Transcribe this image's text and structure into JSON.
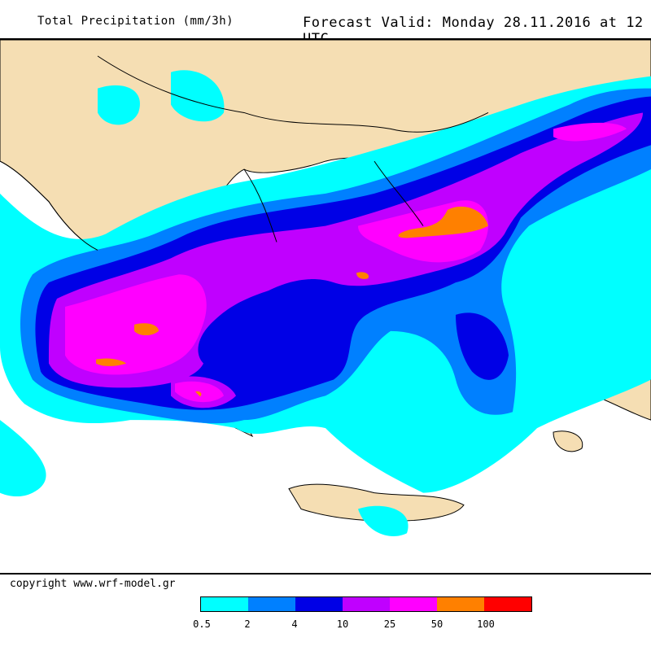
{
  "header": {
    "title": "Total Precipitation (mm/3h)",
    "forecast": "Forecast Valid:  Monday 28.11.2016 at 12 UTC"
  },
  "footer": {
    "copyright": "copyright www.wrf-model.gr"
  },
  "legend": {
    "colors": [
      "#00ffff",
      "#0080ff",
      "#0000e6",
      "#c000ff",
      "#ff00ff",
      "#ff8000",
      "#ff0000"
    ],
    "labels": [
      "0.5",
      "2",
      "4",
      "10",
      "25",
      "50",
      "100"
    ]
  },
  "map": {
    "land_color": "#f5deb3",
    "sea_color": "#ffffff"
  }
}
